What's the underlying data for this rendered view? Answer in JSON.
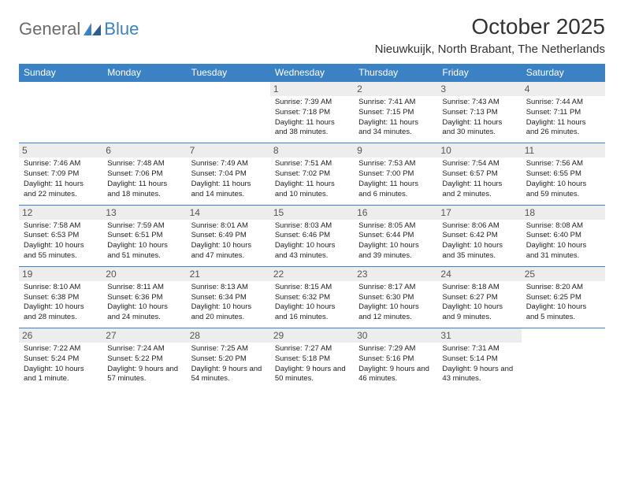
{
  "brand": {
    "part1": "General",
    "part2": "Blue"
  },
  "title": "October 2025",
  "location": "Nieuwkuijk, North Brabant, The Netherlands",
  "colors": {
    "accent": "#3b82c4",
    "text": "#333333",
    "daybg": "#ededed"
  },
  "day_headers": [
    "Sunday",
    "Monday",
    "Tuesday",
    "Wednesday",
    "Thursday",
    "Friday",
    "Saturday"
  ],
  "weeks": [
    [
      null,
      null,
      null,
      {
        "n": "1",
        "sr": "7:39 AM",
        "ss": "7:18 PM",
        "dl": "11 hours and 38 minutes."
      },
      {
        "n": "2",
        "sr": "7:41 AM",
        "ss": "7:15 PM",
        "dl": "11 hours and 34 minutes."
      },
      {
        "n": "3",
        "sr": "7:43 AM",
        "ss": "7:13 PM",
        "dl": "11 hours and 30 minutes."
      },
      {
        "n": "4",
        "sr": "7:44 AM",
        "ss": "7:11 PM",
        "dl": "11 hours and 26 minutes."
      }
    ],
    [
      {
        "n": "5",
        "sr": "7:46 AM",
        "ss": "7:09 PM",
        "dl": "11 hours and 22 minutes."
      },
      {
        "n": "6",
        "sr": "7:48 AM",
        "ss": "7:06 PM",
        "dl": "11 hours and 18 minutes."
      },
      {
        "n": "7",
        "sr": "7:49 AM",
        "ss": "7:04 PM",
        "dl": "11 hours and 14 minutes."
      },
      {
        "n": "8",
        "sr": "7:51 AM",
        "ss": "7:02 PM",
        "dl": "11 hours and 10 minutes."
      },
      {
        "n": "9",
        "sr": "7:53 AM",
        "ss": "7:00 PM",
        "dl": "11 hours and 6 minutes."
      },
      {
        "n": "10",
        "sr": "7:54 AM",
        "ss": "6:57 PM",
        "dl": "11 hours and 2 minutes."
      },
      {
        "n": "11",
        "sr": "7:56 AM",
        "ss": "6:55 PM",
        "dl": "10 hours and 59 minutes."
      }
    ],
    [
      {
        "n": "12",
        "sr": "7:58 AM",
        "ss": "6:53 PM",
        "dl": "10 hours and 55 minutes."
      },
      {
        "n": "13",
        "sr": "7:59 AM",
        "ss": "6:51 PM",
        "dl": "10 hours and 51 minutes."
      },
      {
        "n": "14",
        "sr": "8:01 AM",
        "ss": "6:49 PM",
        "dl": "10 hours and 47 minutes."
      },
      {
        "n": "15",
        "sr": "8:03 AM",
        "ss": "6:46 PM",
        "dl": "10 hours and 43 minutes."
      },
      {
        "n": "16",
        "sr": "8:05 AM",
        "ss": "6:44 PM",
        "dl": "10 hours and 39 minutes."
      },
      {
        "n": "17",
        "sr": "8:06 AM",
        "ss": "6:42 PM",
        "dl": "10 hours and 35 minutes."
      },
      {
        "n": "18",
        "sr": "8:08 AM",
        "ss": "6:40 PM",
        "dl": "10 hours and 31 minutes."
      }
    ],
    [
      {
        "n": "19",
        "sr": "8:10 AM",
        "ss": "6:38 PM",
        "dl": "10 hours and 28 minutes."
      },
      {
        "n": "20",
        "sr": "8:11 AM",
        "ss": "6:36 PM",
        "dl": "10 hours and 24 minutes."
      },
      {
        "n": "21",
        "sr": "8:13 AM",
        "ss": "6:34 PM",
        "dl": "10 hours and 20 minutes."
      },
      {
        "n": "22",
        "sr": "8:15 AM",
        "ss": "6:32 PM",
        "dl": "10 hours and 16 minutes."
      },
      {
        "n": "23",
        "sr": "8:17 AM",
        "ss": "6:30 PM",
        "dl": "10 hours and 12 minutes."
      },
      {
        "n": "24",
        "sr": "8:18 AM",
        "ss": "6:27 PM",
        "dl": "10 hours and 9 minutes."
      },
      {
        "n": "25",
        "sr": "8:20 AM",
        "ss": "6:25 PM",
        "dl": "10 hours and 5 minutes."
      }
    ],
    [
      {
        "n": "26",
        "sr": "7:22 AM",
        "ss": "5:24 PM",
        "dl": "10 hours and 1 minute."
      },
      {
        "n": "27",
        "sr": "7:24 AM",
        "ss": "5:22 PM",
        "dl": "9 hours and 57 minutes."
      },
      {
        "n": "28",
        "sr": "7:25 AM",
        "ss": "5:20 PM",
        "dl": "9 hours and 54 minutes."
      },
      {
        "n": "29",
        "sr": "7:27 AM",
        "ss": "5:18 PM",
        "dl": "9 hours and 50 minutes."
      },
      {
        "n": "30",
        "sr": "7:29 AM",
        "ss": "5:16 PM",
        "dl": "9 hours and 46 minutes."
      },
      {
        "n": "31",
        "sr": "7:31 AM",
        "ss": "5:14 PM",
        "dl": "9 hours and 43 minutes."
      },
      null
    ]
  ],
  "labels": {
    "sunrise": "Sunrise:",
    "sunset": "Sunset:",
    "daylight": "Daylight:"
  }
}
